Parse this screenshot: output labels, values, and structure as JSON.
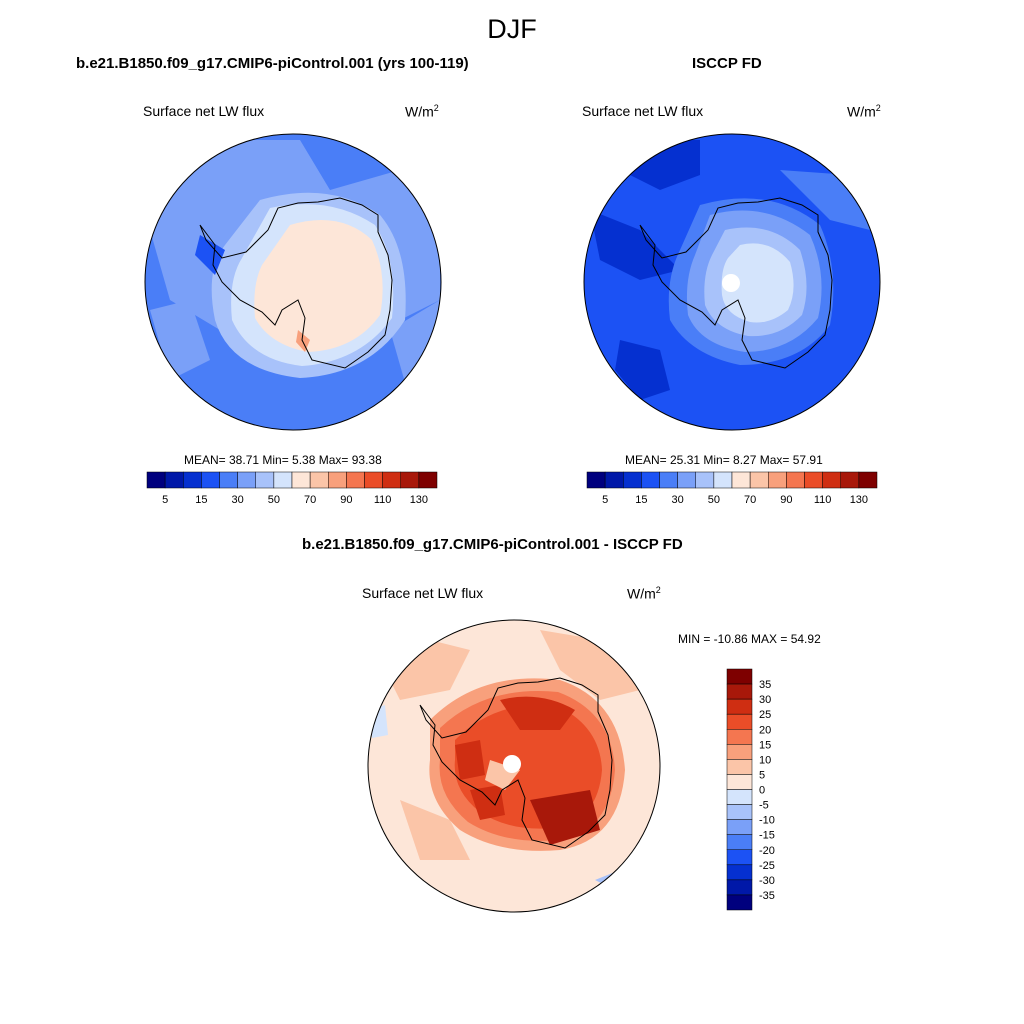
{
  "figure": {
    "title": "DJF"
  },
  "panels": [
    {
      "id": "model",
      "title": "b.e21.B1850.f09_g17.CMIP6-piControl.001 (yrs 100-119)",
      "variable": "Surface net LW flux",
      "units": "W/m",
      "units_sup": "2",
      "stats": "MEAN=  38.71  Min=   5.38  Max=  93.38"
    },
    {
      "id": "obs",
      "title": "ISCCP FD",
      "variable": "Surface net LW flux",
      "units": "W/m",
      "units_sup": "2",
      "stats": "MEAN=  25.31  Min=   8.27  Max=  57.91"
    },
    {
      "id": "diff",
      "title": "b.e21.B1850.f09_g17.CMIP6-piControl.001 - ISCCP FD",
      "variable": "Surface net LW flux",
      "units": "W/m",
      "units_sup": "2",
      "stats": "MIN = -10.86 MAX =  54.92"
    }
  ],
  "abs_colorbar": {
    "colors": [
      "#00007e",
      "#0018a8",
      "#0530d0",
      "#1c52f4",
      "#4a7ef7",
      "#7aa0f8",
      "#a8c2fa",
      "#d4e4fc",
      "#fde6d8",
      "#fbc5a8",
      "#f8a07c",
      "#f47650",
      "#ea4d28",
      "#cf2e12",
      "#a8180a",
      "#7e0000"
    ],
    "labels": [
      "5",
      "15",
      "30",
      "50",
      "70",
      "90",
      "110",
      "130"
    ]
  },
  "diff_colorbar": {
    "colors": [
      "#7e0000",
      "#a8180a",
      "#cf2e12",
      "#ea4d28",
      "#f47650",
      "#f8a07c",
      "#fbc5a8",
      "#fde6d8",
      "#d4e4fc",
      "#a8c2fa",
      "#7aa0f8",
      "#4a7ef7",
      "#1c52f4",
      "#0530d0",
      "#0018a8",
      "#00007e"
    ],
    "labels": [
      "35",
      "30",
      "25",
      "20",
      "15",
      "10",
      "5",
      "0",
      "-5",
      "-10",
      "-15",
      "-20",
      "-25",
      "-30",
      "-35"
    ]
  }
}
